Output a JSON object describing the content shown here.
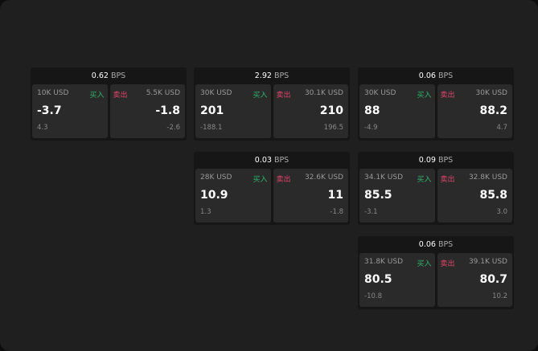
{
  "unit": "BPS",
  "buy_label": "买入",
  "sell_label": "卖出",
  "colors": {
    "buy": "#2fb56a",
    "sell": "#e0456a"
  },
  "widgets": [
    {
      "spread": "0.62",
      "bid_size": "10K USD",
      "bid": "-3.7",
      "bid_change": "4.3",
      "ask_size": "5.5K USD",
      "ask": "-1.8",
      "ask_change": "-2.6"
    },
    {
      "spread": "2.92",
      "bid_size": "30K USD",
      "bid": "201",
      "bid_change": "-188.1",
      "ask_size": "30.1K USD",
      "ask": "210",
      "ask_change": "196.5"
    },
    {
      "spread": "0.06",
      "bid_size": "30K USD",
      "bid": "88",
      "bid_change": "-4.9",
      "ask_size": "30K USD",
      "ask": "88.2",
      "ask_change": "4.7"
    },
    {
      "spread": "0.03",
      "bid_size": "28K USD",
      "bid": "10.9",
      "bid_change": "1.3",
      "ask_size": "32.6K USD",
      "ask": "11",
      "ask_change": "-1.8"
    },
    {
      "spread": "0.09",
      "bid_size": "34.1K USD",
      "bid": "85.5",
      "bid_change": "-3.1",
      "ask_size": "32.8K USD",
      "ask": "85.8",
      "ask_change": "3.0"
    },
    {
      "spread": "0.06",
      "bid_size": "31.8K USD",
      "bid": "80.5",
      "bid_change": "-10.8",
      "ask_size": "39.1K USD",
      "ask": "80.7",
      "ask_change": "10.2"
    }
  ]
}
